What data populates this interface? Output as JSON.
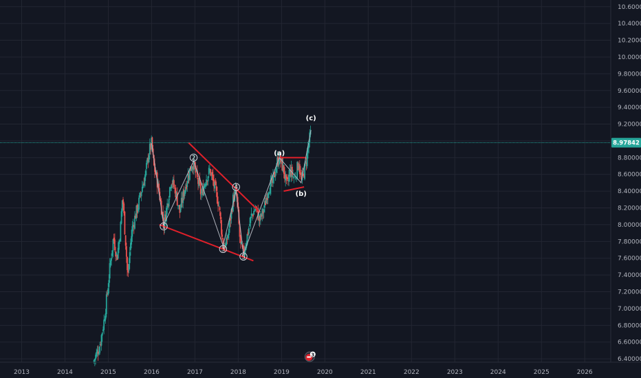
{
  "chart_data": {
    "type": "candlestick",
    "x_axis": {
      "labels": [
        "2013",
        "2014",
        "2015",
        "2016",
        "2017",
        "2018",
        "2019",
        "2020",
        "2021",
        "2022",
        "2023",
        "2024",
        "2025",
        "2026"
      ],
      "range": [
        2012.5,
        2026.6
      ]
    },
    "y_axis": {
      "labels": [
        "10.60000",
        "10.40000",
        "10.20000",
        "10.00000",
        "9.80000",
        "9.60000",
        "9.40000",
        "9.20000",
        "9.00000",
        "8.80000",
        "8.60000",
        "8.40000",
        "8.20000",
        "8.00000",
        "7.80000",
        "7.60000",
        "7.40000",
        "7.20000",
        "7.00000",
        "6.80000",
        "6.60000",
        "6.40000"
      ],
      "range": [
        6.36,
        10.68
      ],
      "position": "right"
    },
    "grid": true,
    "last_price": "8.97842",
    "colors": {
      "background": "#131722",
      "grid": "#232632",
      "up": "#26a69a",
      "down": "#ef5350",
      "trendline": "#e0202a",
      "wave_line": "#b2b5be",
      "price_line": "#26a69a",
      "price_tag": "#26a69a"
    },
    "series": [
      {
        "name": "",
        "kind": "approx_close_path",
        "points": [
          [
            2014.65,
            6.36
          ],
          [
            2014.8,
            6.55
          ],
          [
            2014.9,
            6.85
          ],
          [
            2014.97,
            7.15
          ],
          [
            2015.05,
            7.55
          ],
          [
            2015.12,
            7.85
          ],
          [
            2015.2,
            7.6
          ],
          [
            2015.28,
            7.95
          ],
          [
            2015.33,
            8.35
          ],
          [
            2015.4,
            7.8
          ],
          [
            2015.45,
            7.35
          ],
          [
            2015.5,
            7.7
          ],
          [
            2015.55,
            7.95
          ],
          [
            2015.62,
            8.1
          ],
          [
            2015.7,
            8.25
          ],
          [
            2015.78,
            8.45
          ],
          [
            2015.86,
            8.6
          ],
          [
            2015.93,
            8.85
          ],
          [
            2016.0,
            8.97
          ],
          [
            2016.05,
            8.7
          ],
          [
            2016.12,
            8.55
          ],
          [
            2016.2,
            8.3
          ],
          [
            2016.28,
            8.0
          ],
          [
            2016.35,
            8.2
          ],
          [
            2016.45,
            8.55
          ],
          [
            2016.55,
            8.4
          ],
          [
            2016.65,
            8.15
          ],
          [
            2016.75,
            8.4
          ],
          [
            2016.85,
            8.6
          ],
          [
            2016.95,
            8.75
          ],
          [
            2017.05,
            8.55
          ],
          [
            2017.15,
            8.35
          ],
          [
            2017.25,
            8.55
          ],
          [
            2017.35,
            8.65
          ],
          [
            2017.45,
            8.45
          ],
          [
            2017.55,
            8.25
          ],
          [
            2017.65,
            7.75
          ],
          [
            2017.72,
            7.75
          ],
          [
            2017.8,
            8.0
          ],
          [
            2017.88,
            8.3
          ],
          [
            2017.95,
            8.4
          ],
          [
            2018.0,
            8.1
          ],
          [
            2018.05,
            7.75
          ],
          [
            2018.12,
            7.65
          ],
          [
            2018.2,
            7.85
          ],
          [
            2018.3,
            8.1
          ],
          [
            2018.4,
            8.2
          ],
          [
            2018.5,
            8.05
          ],
          [
            2018.6,
            8.2
          ],
          [
            2018.7,
            8.45
          ],
          [
            2018.8,
            8.5
          ],
          [
            2018.9,
            8.75
          ],
          [
            2018.95,
            8.8
          ],
          [
            2019.05,
            8.65
          ],
          [
            2019.12,
            8.45
          ],
          [
            2019.2,
            8.65
          ],
          [
            2019.3,
            8.55
          ],
          [
            2019.4,
            8.75
          ],
          [
            2019.45,
            8.5
          ],
          [
            2019.55,
            8.7
          ],
          [
            2019.62,
            8.95
          ],
          [
            2019.68,
            9.1
          ]
        ]
      }
    ],
    "annotations": [
      {
        "label": "1",
        "x": 2016.28,
        "y": 7.98,
        "style": "circled"
      },
      {
        "label": "2",
        "x": 2016.97,
        "y": 8.8,
        "style": "circled"
      },
      {
        "label": "3",
        "x": 2017.65,
        "y": 7.71,
        "style": "circled"
      },
      {
        "label": "4",
        "x": 2017.95,
        "y": 8.45,
        "style": "circled"
      },
      {
        "label": "5",
        "x": 2018.12,
        "y": 7.62,
        "style": "circled"
      },
      {
        "label": "(a)",
        "x": 2018.95,
        "y": 8.85,
        "style": "bold"
      },
      {
        "label": "(b)",
        "x": 2019.45,
        "y": 8.37,
        "style": "bold"
      },
      {
        "label": "(c)",
        "x": 2019.68,
        "y": 9.27,
        "style": "bold"
      }
    ],
    "trendlines": [
      {
        "from": [
          2016.85,
          8.98
        ],
        "to": [
          2018.5,
          8.15
        ]
      },
      {
        "from": [
          2016.18,
          8.0
        ],
        "to": [
          2018.35,
          7.57
        ]
      },
      {
        "from": [
          2018.95,
          8.8
        ],
        "to": [
          2019.55,
          8.8
        ]
      },
      {
        "from": [
          2019.05,
          8.4
        ],
        "to": [
          2019.52,
          8.45
        ]
      }
    ],
    "wave_path": [
      [
        2016.0,
        8.97
      ],
      [
        2016.28,
        8.0
      ],
      [
        2016.97,
        8.76
      ],
      [
        2017.65,
        7.75
      ],
      [
        2017.95,
        8.4
      ],
      [
        2018.12,
        7.65
      ],
      [
        2018.95,
        8.8
      ],
      [
        2019.45,
        8.5
      ],
      [
        2019.68,
        9.13
      ]
    ],
    "event_badge": {
      "x": 2019.65,
      "label": "3"
    }
  }
}
